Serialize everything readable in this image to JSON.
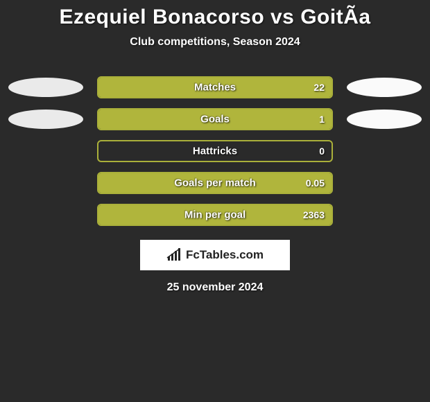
{
  "title": "Ezequiel Bonacorso vs GoitÃa",
  "subtitle": "Club competitions, Season 2024",
  "date": "25 november 2024",
  "logo_text": "FcTables.com",
  "bar_border_color": "#aab03a",
  "bar_fill_color": "#b0b53c",
  "rows": [
    {
      "label": "Matches",
      "value": "22",
      "fill_pct": 100,
      "left_ellipse": true,
      "right_ellipse": true
    },
    {
      "label": "Goals",
      "value": "1",
      "fill_pct": 100,
      "left_ellipse": true,
      "right_ellipse": true
    },
    {
      "label": "Hattricks",
      "value": "0",
      "fill_pct": 0,
      "left_ellipse": false,
      "right_ellipse": false
    },
    {
      "label": "Goals per match",
      "value": "0.05",
      "fill_pct": 100,
      "left_ellipse": false,
      "right_ellipse": false
    },
    {
      "label": "Min per goal",
      "value": "2363",
      "fill_pct": 100,
      "left_ellipse": false,
      "right_ellipse": false
    }
  ]
}
